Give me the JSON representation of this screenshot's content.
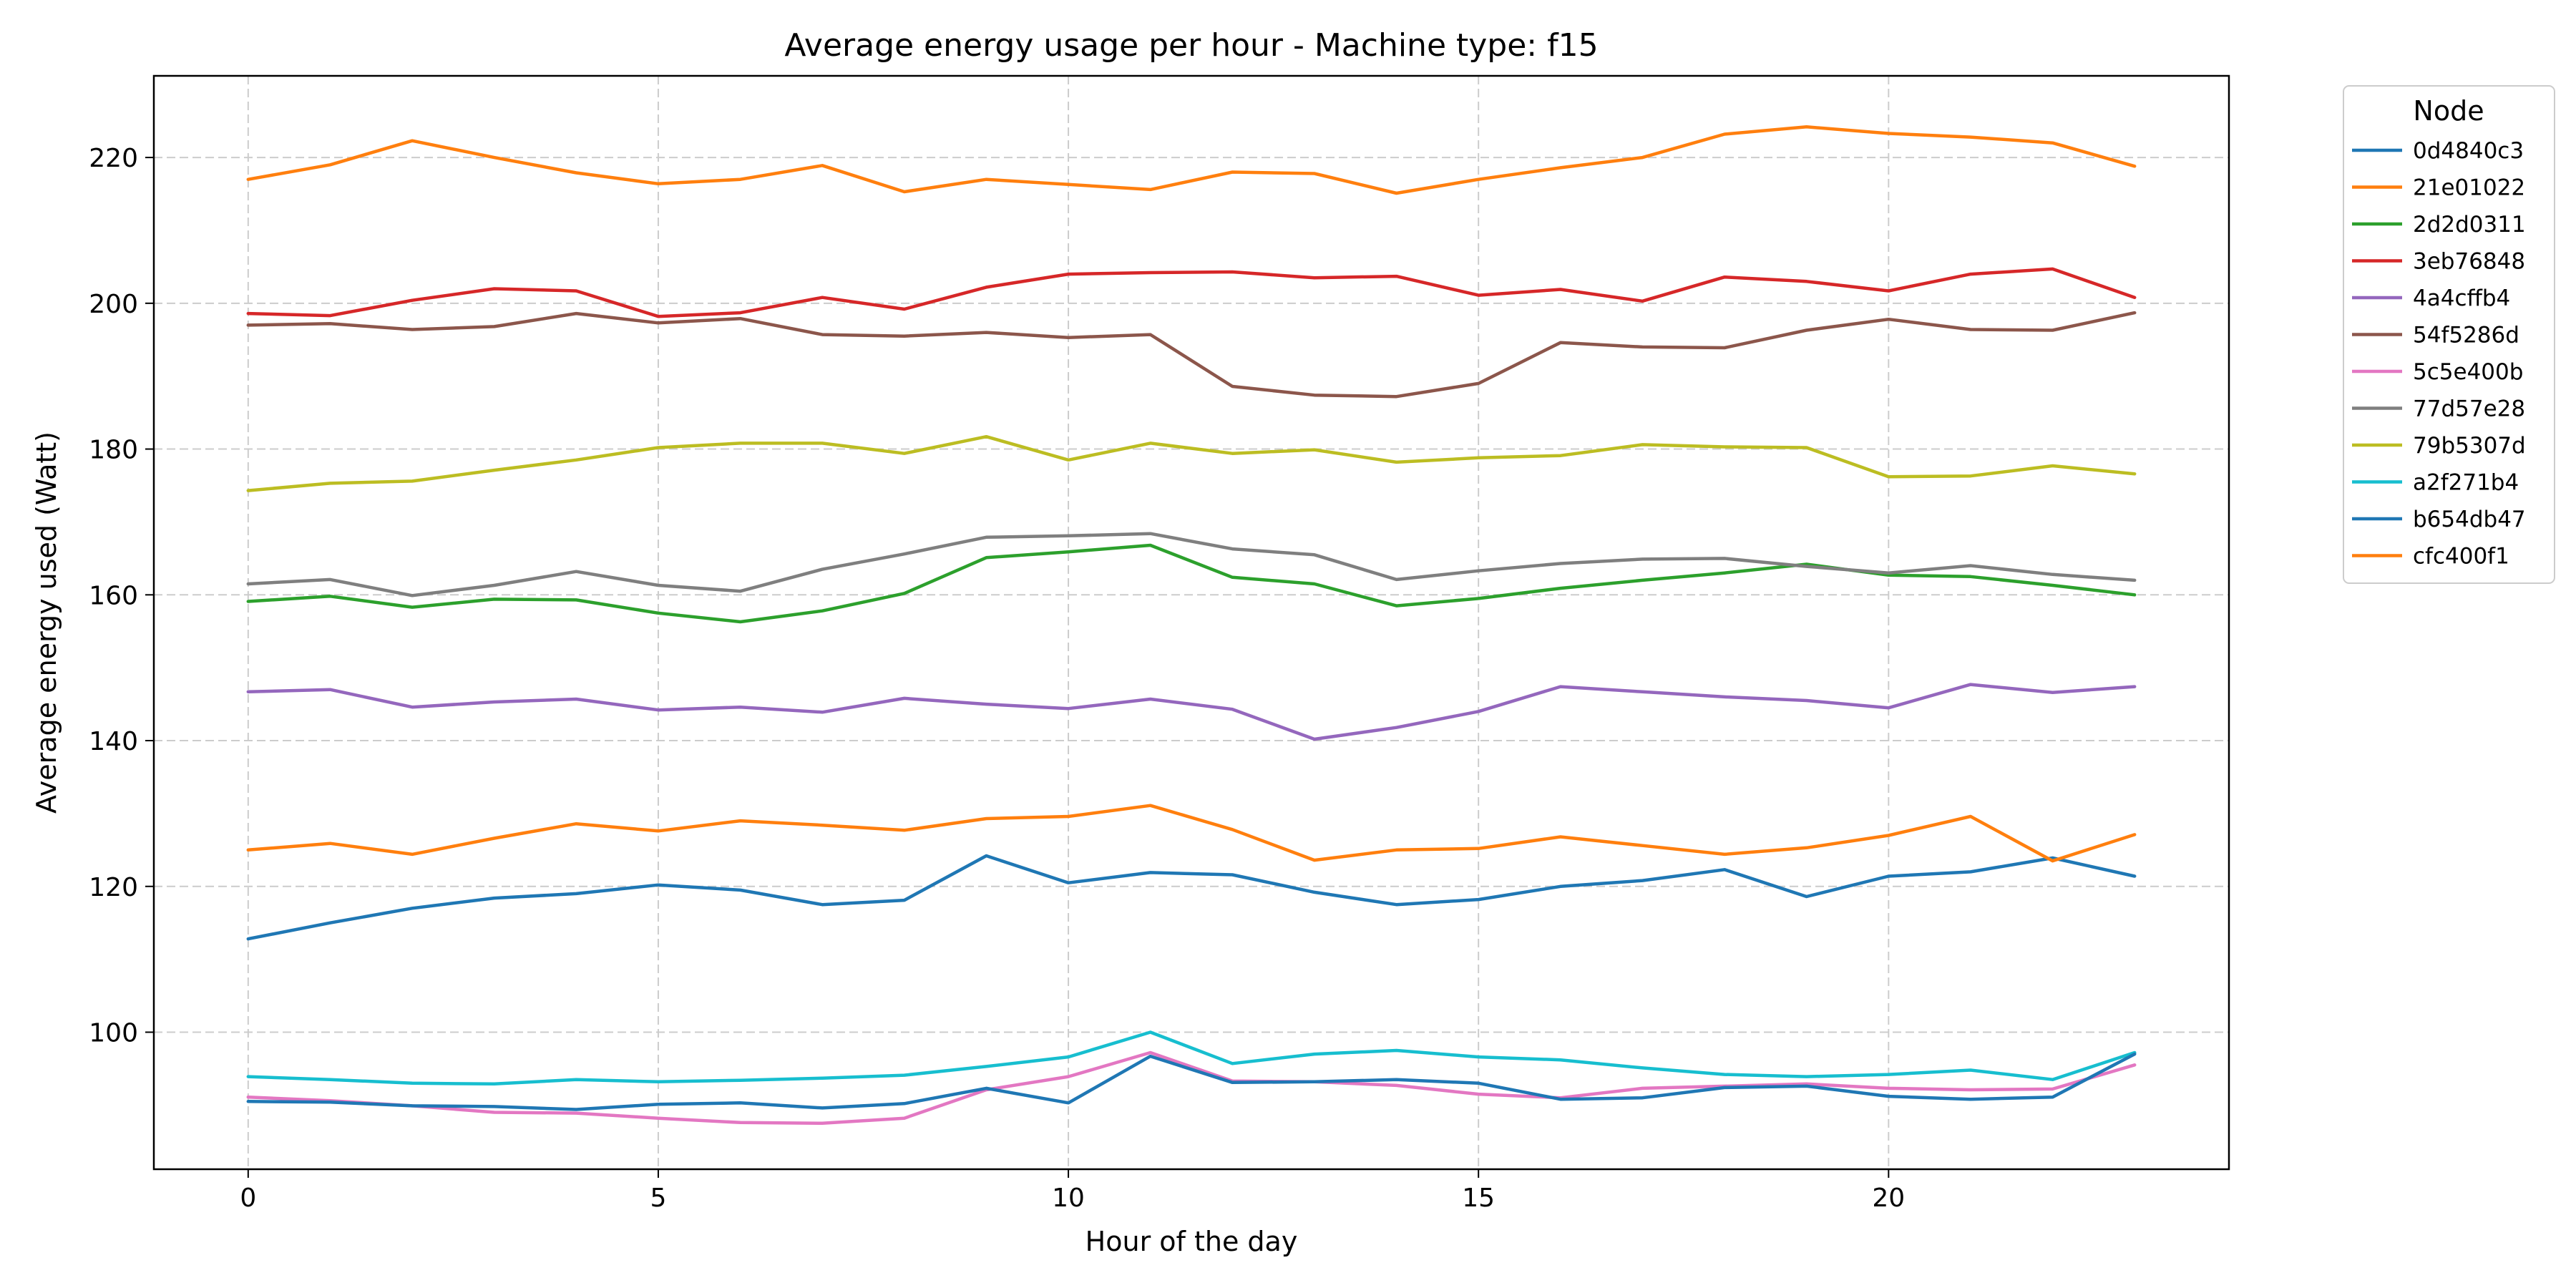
{
  "chart_data": {
    "type": "line",
    "title": "Average energy usage per hour - Machine type: f15",
    "xlabel": "Hour of the day",
    "ylabel": "Average energy used (Watt)",
    "xlim": [
      -1.15,
      24.15
    ],
    "ylim": [
      81.2,
      231.2
    ],
    "xticks": [
      0,
      5,
      10,
      15,
      20
    ],
    "yticks": [
      100,
      120,
      140,
      160,
      180,
      200,
      220
    ],
    "grid": true,
    "legend_title": "Node",
    "legend_position": "outside-right-top",
    "x": [
      0,
      1,
      2,
      3,
      4,
      5,
      6,
      7,
      8,
      9,
      10,
      11,
      12,
      13,
      14,
      15,
      16,
      17,
      18,
      19,
      20,
      21,
      22,
      23
    ],
    "series": [
      {
        "name": "0d4840c3",
        "color": "#1f77b4",
        "values": [
          112.8,
          115.0,
          117.0,
          118.4,
          119.0,
          120.2,
          119.5,
          117.5,
          118.1,
          124.2,
          120.5,
          121.9,
          121.6,
          119.2,
          117.5,
          118.2,
          120.0,
          120.8,
          122.3,
          118.6,
          121.4,
          122.0,
          123.9,
          121.4
        ]
      },
      {
        "name": "21e01022",
        "color": "#ff7f0e",
        "values": [
          217.0,
          219.0,
          222.3,
          220.0,
          217.9,
          216.4,
          217.0,
          218.9,
          215.3,
          217.0,
          216.3,
          215.6,
          218.0,
          217.8,
          215.1,
          217.0,
          218.6,
          220.0,
          223.2,
          224.2,
          223.3,
          222.8,
          222.0,
          218.8
        ]
      },
      {
        "name": "2d2d0311",
        "color": "#2ca02c",
        "values": [
          159.1,
          159.8,
          158.3,
          159.4,
          159.3,
          157.5,
          156.3,
          157.8,
          160.2,
          165.1,
          165.9,
          166.8,
          162.4,
          161.5,
          158.5,
          159.5,
          160.9,
          162.0,
          163.0,
          164.2,
          162.7,
          162.5,
          161.3,
          160.0
        ]
      },
      {
        "name": "3eb76848",
        "color": "#d62728",
        "values": [
          198.6,
          198.3,
          200.4,
          202.0,
          201.7,
          198.2,
          198.7,
          200.8,
          199.2,
          202.2,
          204.0,
          204.2,
          204.3,
          203.5,
          203.7,
          201.1,
          201.9,
          200.3,
          203.6,
          203.0,
          201.7,
          204.0,
          204.7,
          200.8
        ]
      },
      {
        "name": "4a4cffb4",
        "color": "#9467bd",
        "values": [
          146.7,
          147.0,
          144.6,
          145.3,
          145.7,
          144.2,
          144.6,
          143.9,
          145.8,
          145.0,
          144.4,
          145.7,
          144.3,
          140.2,
          141.8,
          144.0,
          147.4,
          146.7,
          146.0,
          145.5,
          144.5,
          147.7,
          146.6,
          147.4
        ]
      },
      {
        "name": "54f5286d",
        "color": "#8c564b",
        "values": [
          197.0,
          197.2,
          196.4,
          196.8,
          198.6,
          197.3,
          197.9,
          195.7,
          195.5,
          196.0,
          195.3,
          195.7,
          188.6,
          187.4,
          187.2,
          189.0,
          194.6,
          194.0,
          193.9,
          196.3,
          197.8,
          196.4,
          196.3,
          198.7
        ]
      },
      {
        "name": "5c5e400b",
        "color": "#e377c2",
        "values": [
          91.1,
          90.6,
          89.9,
          89.0,
          88.9,
          88.2,
          87.6,
          87.5,
          88.2,
          92.1,
          93.9,
          97.2,
          93.3,
          93.2,
          92.7,
          91.5,
          91.0,
          92.3,
          92.6,
          92.9,
          92.3,
          92.1,
          92.2,
          95.5
        ]
      },
      {
        "name": "77d57e28",
        "color": "#7f7f7f",
        "values": [
          161.5,
          162.1,
          159.9,
          161.3,
          163.2,
          161.3,
          160.5,
          163.5,
          165.6,
          167.9,
          168.1,
          168.4,
          166.3,
          165.5,
          162.1,
          163.3,
          164.3,
          164.9,
          165.0,
          163.9,
          163.0,
          164.0,
          162.8,
          162.0
        ]
      },
      {
        "name": "79b5307d",
        "color": "#bcbd22",
        "values": [
          174.3,
          175.3,
          175.6,
          177.1,
          178.5,
          180.2,
          180.8,
          180.8,
          179.4,
          181.7,
          178.5,
          180.8,
          179.4,
          179.9,
          178.2,
          178.8,
          179.1,
          180.6,
          180.3,
          180.2,
          176.2,
          176.3,
          177.7,
          176.6
        ]
      },
      {
        "name": "a2f271b4",
        "color": "#17becf",
        "values": [
          93.9,
          93.5,
          93.0,
          92.9,
          93.5,
          93.2,
          93.4,
          93.7,
          94.1,
          95.3,
          96.6,
          100.0,
          95.7,
          97.0,
          97.5,
          96.6,
          96.2,
          95.1,
          94.2,
          93.9,
          94.2,
          94.8,
          93.5,
          97.2
        ]
      },
      {
        "name": "b654db47",
        "color": "#1f77b4",
        "values": [
          90.5,
          90.4,
          89.9,
          89.8,
          89.4,
          90.1,
          90.3,
          89.6,
          90.2,
          92.3,
          90.3,
          96.7,
          93.1,
          93.2,
          93.5,
          93.0,
          90.8,
          91.0,
          92.4,
          92.6,
          91.2,
          90.8,
          91.1,
          97.0
        ]
      },
      {
        "name": "cfc400f1",
        "color": "#ff7f0e",
        "values": [
          125.0,
          125.9,
          124.4,
          126.6,
          128.6,
          127.6,
          129.0,
          128.4,
          127.7,
          129.3,
          129.6,
          131.1,
          127.8,
          123.6,
          125.0,
          125.2,
          126.8,
          125.6,
          124.4,
          125.3,
          127.0,
          129.6,
          123.5,
          127.1
        ]
      }
    ]
  }
}
